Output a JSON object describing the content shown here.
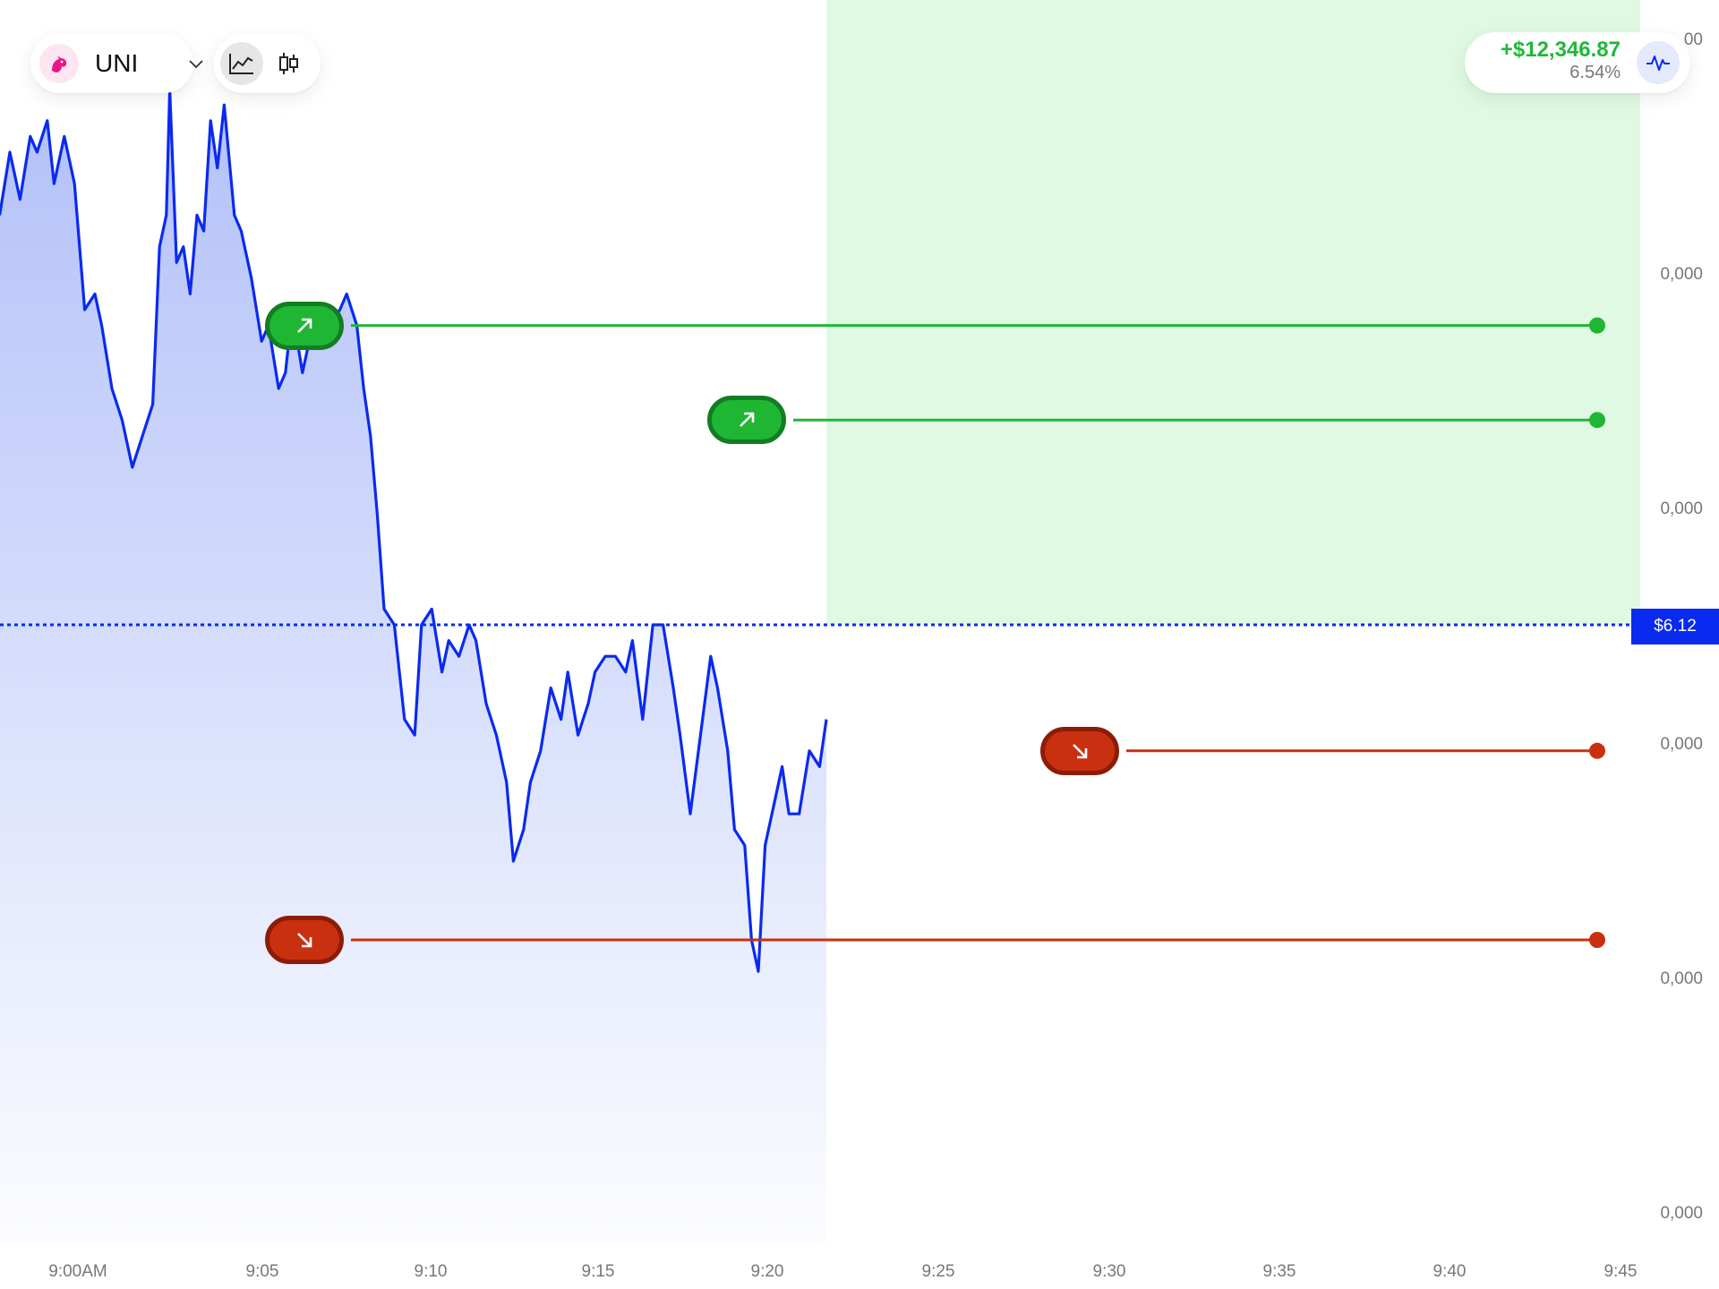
{
  "header": {
    "asset": {
      "symbol": "UNI",
      "logo_icon": "uniswap-unicorn-icon",
      "dropdown_icon": "chevron-down-icon"
    },
    "chart_type_toggle": {
      "options": [
        "line",
        "candlestick"
      ],
      "selected": "line"
    },
    "pnl": {
      "value": "+$12,346.87",
      "percent": "6.54%",
      "icon": "activity-icon"
    }
  },
  "colors": {
    "line": "#0a2af0",
    "buy": "#1fb634",
    "sell": "#c9300f",
    "profit_zone": "#e0f9e2",
    "pnl_text": "#1fb83a"
  },
  "current_price": {
    "label": "$6.12"
  },
  "y_axis": {
    "labels": [
      "00",
      "0,000",
      "0,000",
      "0,000",
      "0,000",
      "0,000"
    ]
  },
  "orders": [
    {
      "type": "buy",
      "icon": "arrow-up-right-icon"
    },
    {
      "type": "buy",
      "icon": "arrow-up-right-icon"
    },
    {
      "type": "sell",
      "icon": "arrow-down-right-icon"
    },
    {
      "type": "sell",
      "icon": "arrow-down-right-icon"
    }
  ],
  "chart_data": {
    "type": "area",
    "x_tick_labels": [
      "9:00AM",
      "9:05",
      "9:10",
      "9:15",
      "9:20",
      "9:25",
      "9:30",
      "9:35",
      "9:40",
      "9:45"
    ],
    "y_tick_labels": [
      "00",
      "0,000",
      "0,000",
      "0,000",
      "0,000",
      "0,000"
    ],
    "x_unit": "minutes after 9:00AM",
    "x_range": [
      0,
      48
    ],
    "series": [
      {
        "points": [
          [
            0.0,
            6.38
          ],
          [
            0.3,
            6.42
          ],
          [
            0.6,
            6.39
          ],
          [
            0.9,
            6.43
          ],
          [
            1.1,
            6.42
          ],
          [
            1.4,
            6.44
          ],
          [
            1.6,
            6.4
          ],
          [
            1.9,
            6.43
          ],
          [
            2.2,
            6.4
          ],
          [
            2.5,
            6.32
          ],
          [
            2.8,
            6.33
          ],
          [
            3.0,
            6.31
          ],
          [
            3.3,
            6.27
          ],
          [
            3.6,
            6.25
          ],
          [
            3.9,
            6.22
          ],
          [
            4.2,
            6.24
          ],
          [
            4.5,
            6.26
          ],
          [
            4.7,
            6.36
          ],
          [
            4.9,
            6.38
          ],
          [
            5.0,
            6.46
          ],
          [
            5.2,
            6.35
          ],
          [
            5.4,
            6.36
          ],
          [
            5.6,
            6.33
          ],
          [
            5.8,
            6.38
          ],
          [
            6.0,
            6.37
          ],
          [
            6.2,
            6.44
          ],
          [
            6.4,
            6.41
          ],
          [
            6.6,
            6.45
          ],
          [
            6.9,
            6.38
          ],
          [
            7.1,
            6.37
          ],
          [
            7.4,
            6.34
          ],
          [
            7.7,
            6.3
          ],
          [
            7.9,
            6.31
          ],
          [
            8.2,
            6.27
          ],
          [
            8.4,
            6.28
          ],
          [
            8.6,
            6.32
          ],
          [
            8.9,
            6.28
          ],
          [
            9.1,
            6.3
          ],
          [
            9.4,
            6.32
          ],
          [
            9.7,
            6.31
          ],
          [
            10.0,
            6.32
          ],
          [
            10.2,
            6.33
          ],
          [
            10.5,
            6.31
          ],
          [
            10.7,
            6.27
          ],
          [
            10.9,
            6.24
          ],
          [
            11.1,
            6.19
          ],
          [
            11.3,
            6.13
          ],
          [
            11.6,
            6.12
          ],
          [
            11.9,
            6.06
          ],
          [
            12.2,
            6.05
          ],
          [
            12.4,
            6.12
          ],
          [
            12.7,
            6.13
          ],
          [
            13.0,
            6.09
          ],
          [
            13.2,
            6.11
          ],
          [
            13.5,
            6.1
          ],
          [
            13.8,
            6.12
          ],
          [
            14.0,
            6.11
          ],
          [
            14.3,
            6.07
          ],
          [
            14.6,
            6.05
          ],
          [
            14.9,
            6.02
          ],
          [
            15.1,
            5.97
          ],
          [
            15.4,
            5.99
          ],
          [
            15.6,
            6.02
          ],
          [
            15.9,
            6.04
          ],
          [
            16.2,
            6.08
          ],
          [
            16.5,
            6.06
          ],
          [
            16.7,
            6.09
          ],
          [
            17.0,
            6.05
          ],
          [
            17.3,
            6.07
          ],
          [
            17.5,
            6.09
          ],
          [
            17.8,
            6.1
          ],
          [
            18.1,
            6.1
          ],
          [
            18.4,
            6.09
          ],
          [
            18.6,
            6.11
          ],
          [
            18.9,
            6.06
          ],
          [
            19.2,
            6.12
          ],
          [
            19.5,
            6.12
          ],
          [
            19.8,
            6.08
          ],
          [
            20.0,
            6.05
          ],
          [
            20.3,
            6.0
          ],
          [
            20.6,
            6.05
          ],
          [
            20.9,
            6.1
          ],
          [
            21.1,
            6.08
          ],
          [
            21.4,
            6.04
          ],
          [
            21.6,
            5.99
          ],
          [
            21.9,
            5.98
          ],
          [
            22.1,
            5.92
          ],
          [
            22.3,
            5.9
          ],
          [
            22.5,
            5.98
          ],
          [
            22.8,
            6.01
          ],
          [
            23.0,
            6.03
          ],
          [
            23.2,
            6.0
          ],
          [
            23.5,
            6.0
          ],
          [
            23.8,
            6.04
          ],
          [
            24.1,
            6.03
          ],
          [
            24.3,
            6.06
          ]
        ]
      }
    ],
    "current_price": 6.12,
    "buy_levels": [
      6.31,
      6.25
    ],
    "sell_levels": [
      6.04,
      5.92
    ],
    "profit_zone": {
      "x_from": 24.3,
      "x_to": 48,
      "y_from": 6.12
    },
    "grid": false,
    "legend": "none"
  }
}
